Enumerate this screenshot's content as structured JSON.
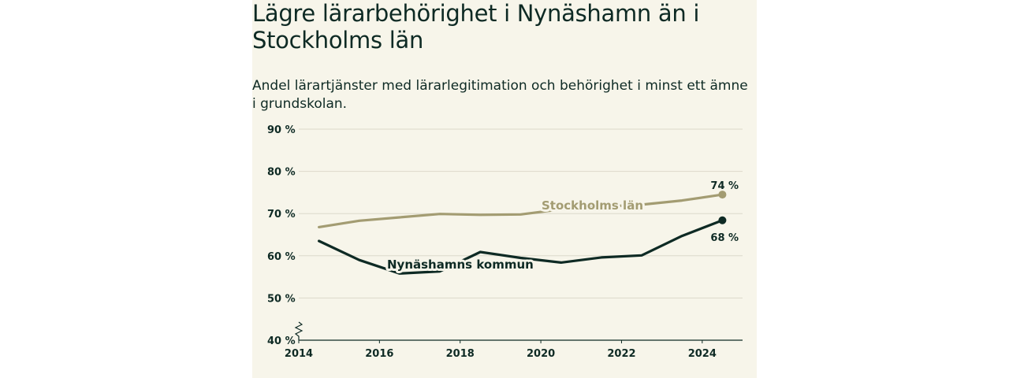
{
  "chart_data": {
    "type": "line",
    "title": "Lägre lärarbehörighet i Nynäshamn än i Stockholms län",
    "subtitle": "Andel lärartjänster med lärarlegitimation och behörighet i minst ett ämne i grundskolan.",
    "x": [
      2014.5,
      2015.5,
      2016.5,
      2017.5,
      2018.5,
      2019.5,
      2020.5,
      2021.5,
      2022.5,
      2023.5,
      2024.5
    ],
    "xlim": [
      2014,
      2025
    ],
    "xticks": [
      2014,
      2016,
      2018,
      2020,
      2022,
      2024
    ],
    "ylim": [
      40,
      90
    ],
    "yticks": [
      40,
      50,
      60,
      70,
      80,
      90
    ],
    "ytick_labels": [
      "40 %",
      "50 %",
      "60 %",
      "70 %",
      "80 %",
      "90 %"
    ],
    "grid": true,
    "axis_break": true,
    "series": [
      {
        "name": "Stockholms län",
        "color": "#a39c72",
        "values": [
          66.8,
          68.3,
          69.1,
          69.9,
          69.7,
          69.8,
          71.0,
          71.6,
          72.1,
          73.1,
          74.5
        ],
        "end_label": "74 %"
      },
      {
        "name": "Nynäshamns kommun",
        "color": "#0e2a24",
        "values": [
          63.5,
          59.0,
          55.8,
          56.3,
          60.9,
          59.5,
          58.4,
          59.6,
          60.1,
          64.7,
          68.4
        ],
        "end_label": "68 %"
      }
    ]
  }
}
